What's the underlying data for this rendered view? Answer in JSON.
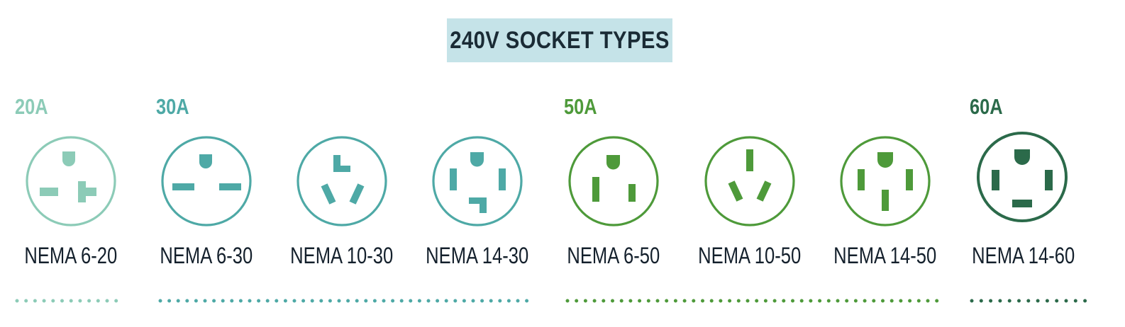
{
  "title": "240V SOCKET TYPES",
  "colors": {
    "title_bg": "#c5e3e8",
    "title_text": "#1a2b35",
    "label_text": "#14202c",
    "amp_20": "#8ccbb7",
    "amp_30": "#4ea9a6",
    "amp_50": "#4e9a3a",
    "amp_60": "#2b6a4a"
  },
  "groups": [
    {
      "amperage": "20A",
      "color": "#8ccbb7"
    },
    {
      "amperage": "30A",
      "color": "#4ea9a6"
    },
    {
      "amperage": "50A",
      "color": "#4e9a3a"
    },
    {
      "amperage": "60A",
      "color": "#2b6a4a"
    }
  ],
  "sockets": [
    {
      "label": "NEMA 6-20",
      "amperage": "20A",
      "color": "#8ccbb7",
      "icon": "nema-6-20-socket-icon"
    },
    {
      "label": "NEMA 6-30",
      "amperage": "30A",
      "color": "#4ea9a6",
      "icon": "nema-6-30-socket-icon"
    },
    {
      "label": "NEMA 10-30",
      "amperage": "30A",
      "color": "#4ea9a6",
      "icon": "nema-10-30-socket-icon"
    },
    {
      "label": "NEMA 14-30",
      "amperage": "30A",
      "color": "#4ea9a6",
      "icon": "nema-14-30-socket-icon"
    },
    {
      "label": "NEMA 6-50",
      "amperage": "50A",
      "color": "#4e9a3a",
      "icon": "nema-6-50-socket-icon"
    },
    {
      "label": "NEMA 10-50",
      "amperage": "50A",
      "color": "#4e9a3a",
      "icon": "nema-10-50-socket-icon"
    },
    {
      "label": "NEMA 14-50",
      "amperage": "50A",
      "color": "#4e9a3a",
      "icon": "nema-14-50-socket-icon"
    },
    {
      "label": "NEMA 14-60",
      "amperage": "60A",
      "color": "#2b6a4a",
      "icon": "nema-14-60-socket-icon"
    }
  ]
}
